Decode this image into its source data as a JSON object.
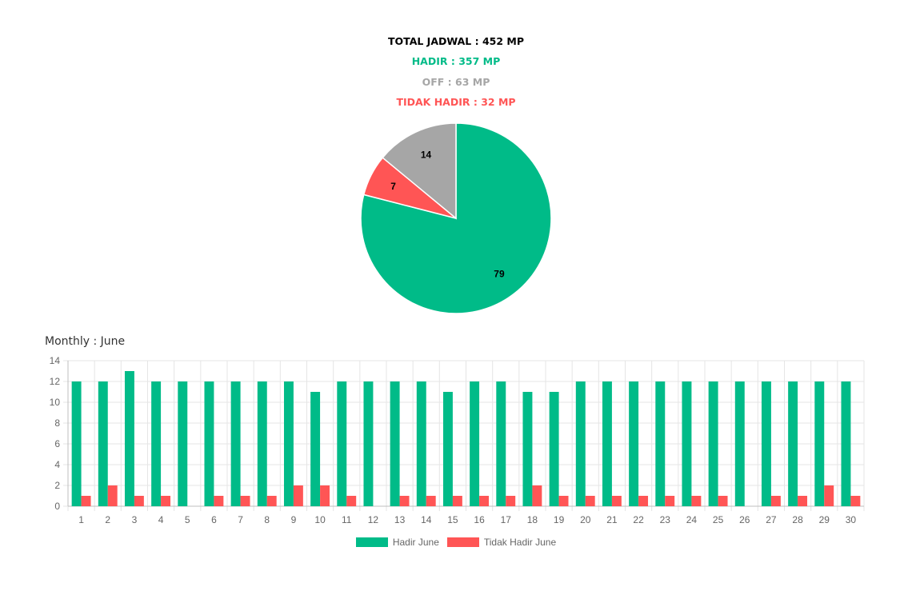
{
  "summary": {
    "total": "TOTAL JADWAL : 452 MP",
    "hadir": "HADIR : 357 MP",
    "off": "OFF : 63 MP",
    "tidak_hadir": "TIDAK HADIR : 32 MP"
  },
  "colors": {
    "total": "#000000",
    "hadir": "#00bb88",
    "off": "#a6a6a6",
    "tidak_hadir": "#ff5555"
  },
  "monthly_title": "Monthly : June",
  "chart_data": [
    {
      "type": "pie",
      "slices": [
        {
          "label": "79",
          "value": 79,
          "color": "#00bb88"
        },
        {
          "label": "7",
          "value": 7,
          "color": "#ff5555"
        },
        {
          "label": "14",
          "value": 14,
          "color": "#a6a6a6"
        }
      ]
    },
    {
      "type": "bar",
      "categories": [
        "1",
        "2",
        "3",
        "4",
        "5",
        "6",
        "7",
        "8",
        "9",
        "10",
        "11",
        "12",
        "13",
        "14",
        "15",
        "16",
        "17",
        "18",
        "19",
        "20",
        "21",
        "22",
        "23",
        "24",
        "25",
        "26",
        "27",
        "28",
        "29",
        "30"
      ],
      "series": [
        {
          "name": "Hadir June",
          "color": "#00bb88",
          "values": [
            12,
            12,
            13,
            12,
            12,
            12,
            12,
            12,
            12,
            11,
            12,
            12,
            12,
            12,
            11,
            12,
            12,
            11,
            11,
            12,
            12,
            12,
            12,
            12,
            12,
            12,
            12,
            12,
            12,
            12
          ]
        },
        {
          "name": "Tidak Hadir June",
          "color": "#ff5555",
          "values": [
            1,
            2,
            1,
            1,
            0,
            1,
            1,
            1,
            2,
            2,
            1,
            0,
            1,
            1,
            1,
            1,
            1,
            2,
            1,
            1,
            1,
            1,
            1,
            1,
            1,
            0,
            1,
            1,
            2,
            1
          ]
        }
      ],
      "ylim": [
        0,
        14
      ],
      "yticks": [
        0,
        2,
        4,
        6,
        8,
        10,
        12,
        14
      ],
      "grid": true,
      "legend": "bottom"
    }
  ]
}
